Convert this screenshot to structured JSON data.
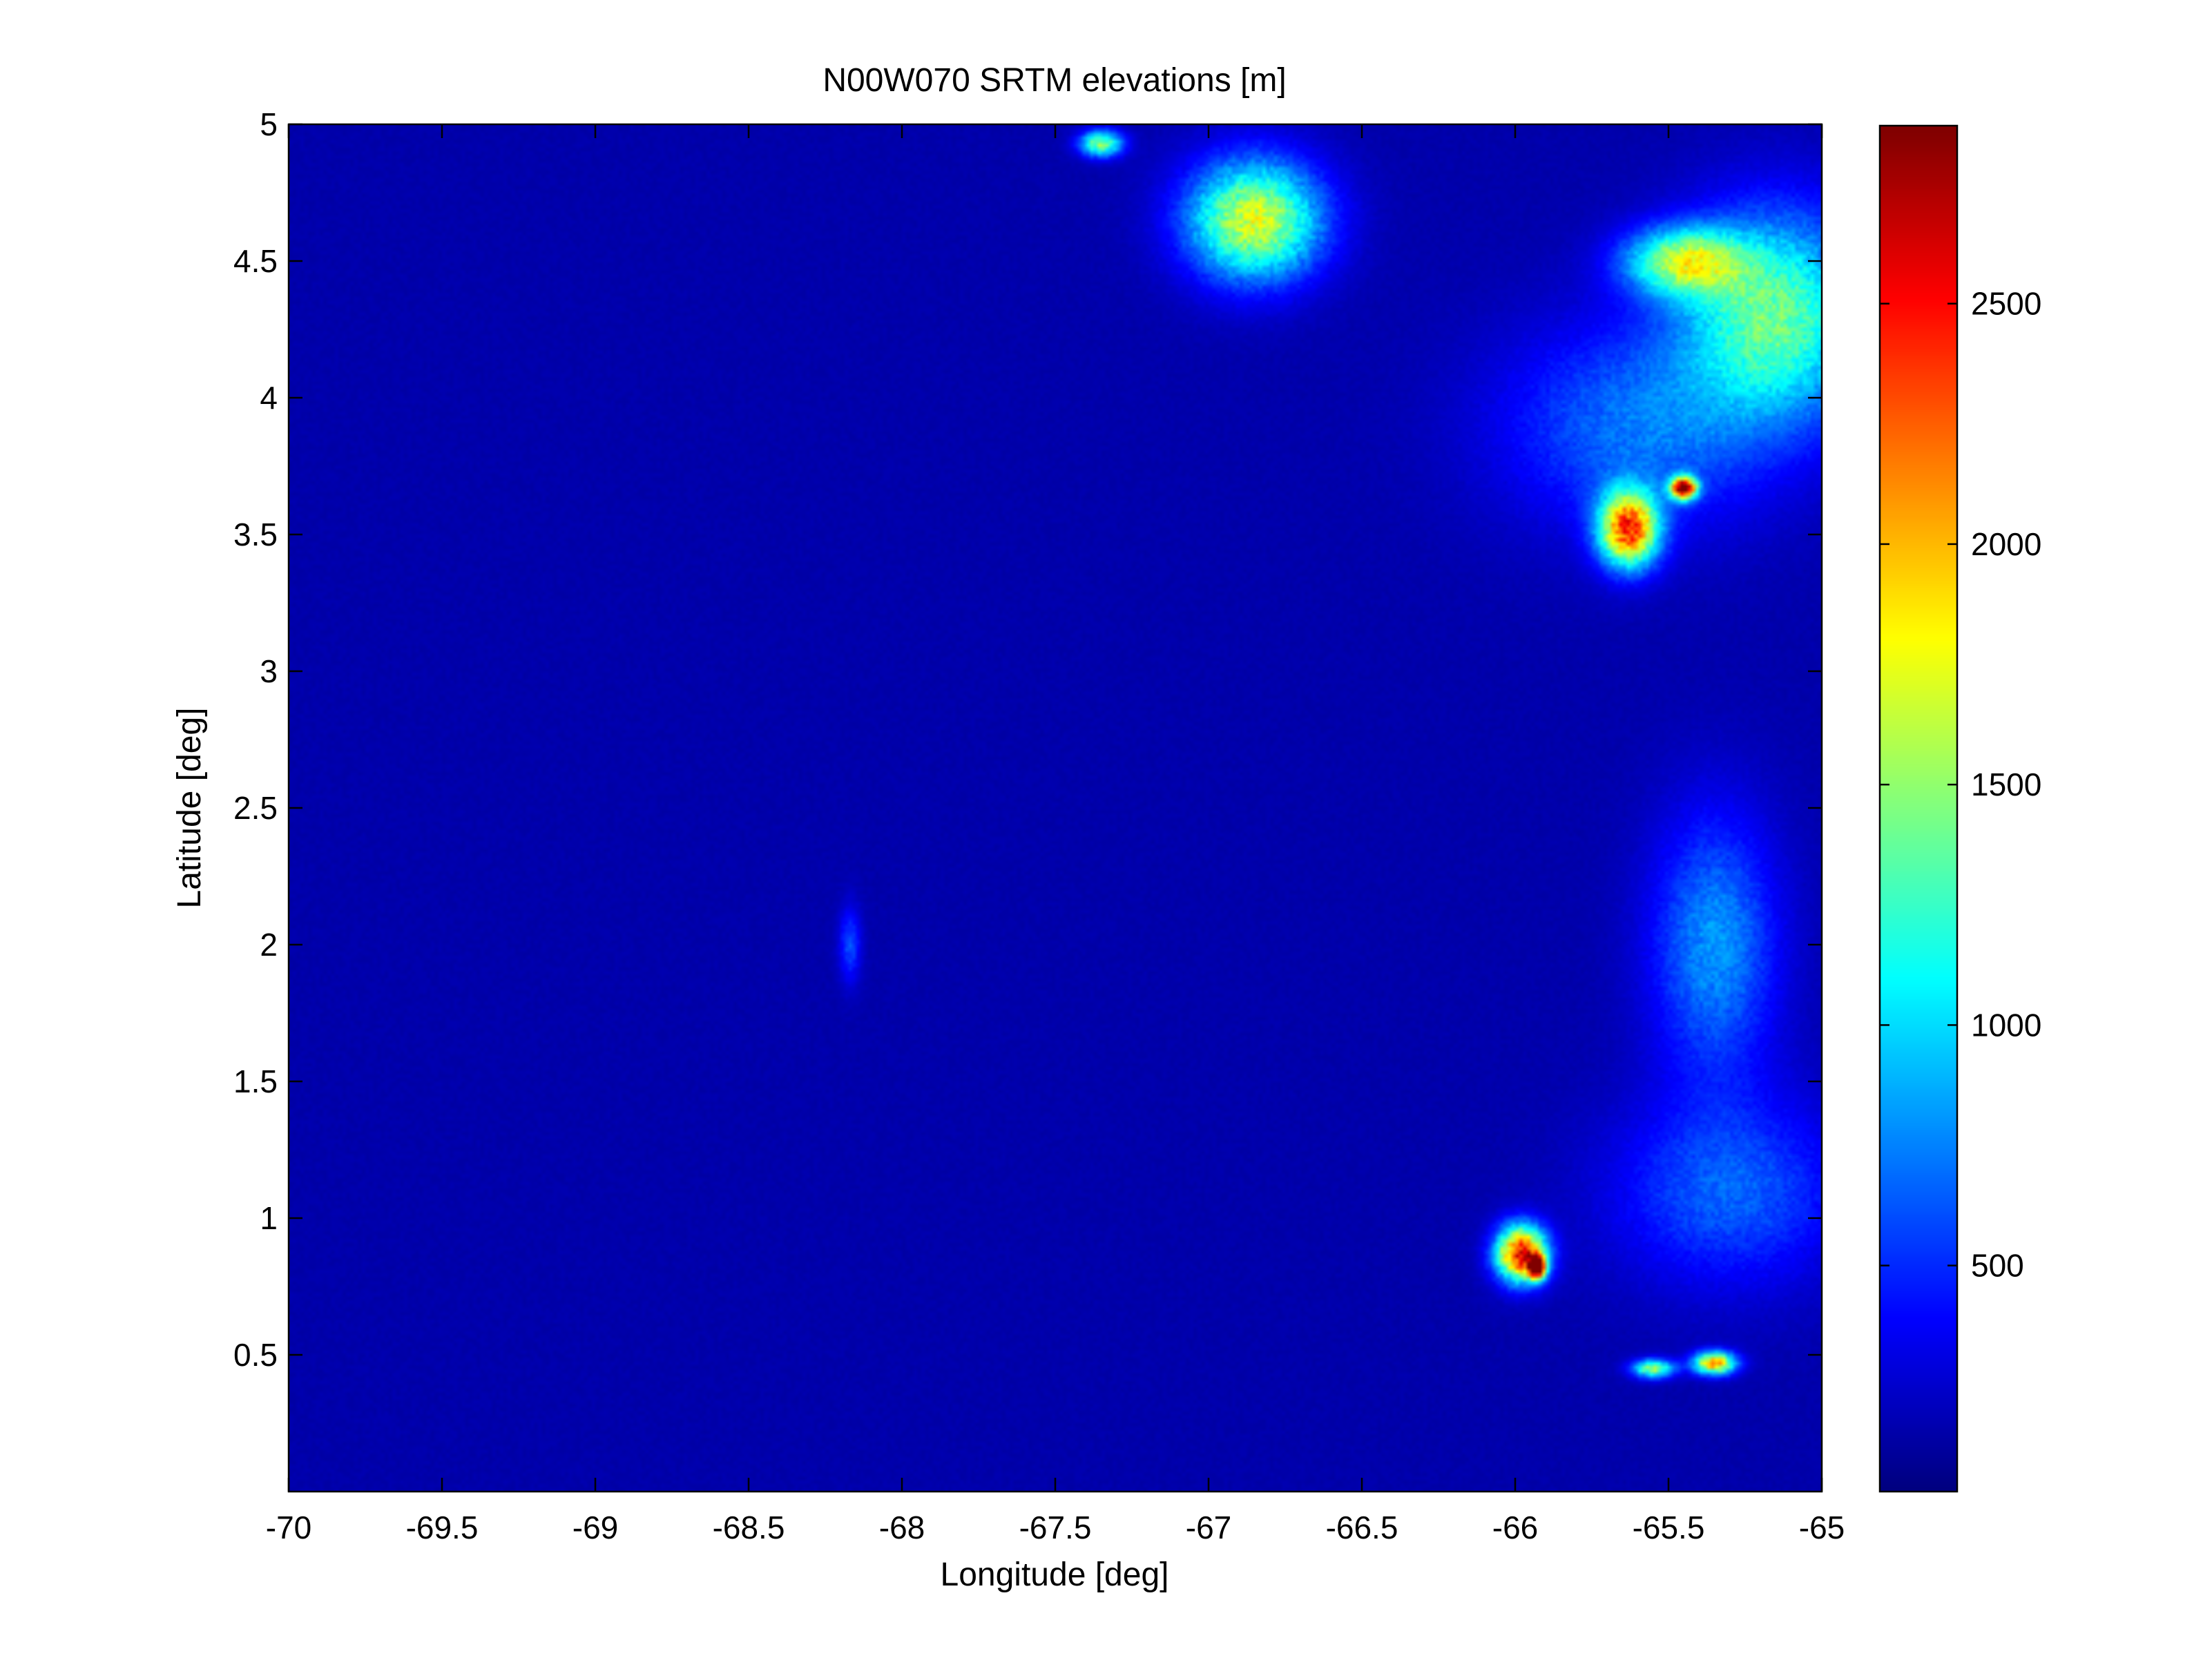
{
  "chart_data": {
    "type": "heatmap",
    "title": "N00W070 SRTM elevations [m]",
    "xlabel": "Longitude [deg]",
    "ylabel": "Latitude [deg]",
    "xlim": [
      -70,
      -65
    ],
    "ylim": [
      0,
      5
    ],
    "xticks": [
      -70,
      -69.5,
      -69,
      -68.5,
      -68,
      -67.5,
      -67,
      -66.5,
      -66,
      -65.5,
      -65
    ],
    "xtick_labels": [
      "-70",
      "-69.5",
      "-69",
      "-68.5",
      "-68",
      "-67.5",
      "-67",
      "-66.5",
      "-66",
      "-65.5",
      "-65"
    ],
    "yticks": [
      0.5,
      1,
      1.5,
      2,
      2.5,
      3,
      3.5,
      4,
      4.5,
      5
    ],
    "ytick_labels": [
      "0.5",
      "1",
      "1.5",
      "2",
      "2.5",
      "3",
      "3.5",
      "4",
      "4.5",
      "5"
    ],
    "colorbar": {
      "colormap": "jet",
      "clim": [
        30,
        2870
      ],
      "ticks": [
        500,
        1000,
        1500,
        2000,
        2500
      ],
      "tick_labels": [
        "500",
        "1000",
        "1500",
        "2000",
        "2500"
      ]
    },
    "background_value": 150,
    "features": [
      {
        "name": "north-central-highland",
        "lon": -66.85,
        "lat": 4.65,
        "peak": 1700,
        "rx": 0.32,
        "ry": 0.32
      },
      {
        "name": "north-central-highland-2",
        "lon": -67.35,
        "lat": 4.93,
        "peak": 1500,
        "rx": 0.1,
        "ry": 0.07
      },
      {
        "name": "northeast-plateau",
        "lon": -65.15,
        "lat": 4.3,
        "peak": 1350,
        "rx": 0.45,
        "ry": 0.55
      },
      {
        "name": "northeast-plateau-2",
        "lon": -65.45,
        "lat": 4.5,
        "peak": 1450,
        "rx": 0.28,
        "ry": 0.18
      },
      {
        "name": "northeast-foothills",
        "lon": -65.6,
        "lat": 3.9,
        "peak": 700,
        "rx": 0.65,
        "ry": 0.55
      },
      {
        "name": "tepui-sierra",
        "lon": -65.63,
        "lat": 3.52,
        "peak": 2300,
        "rx": 0.14,
        "ry": 0.2
      },
      {
        "name": "tepui-peak",
        "lon": -65.45,
        "lat": 3.67,
        "peak": 2800,
        "rx": 0.06,
        "ry": 0.06
      },
      {
        "name": "east-foothills",
        "lon": -65.35,
        "lat": 2.0,
        "peak": 800,
        "rx": 0.3,
        "ry": 0.7
      },
      {
        "name": "southeast-lowland-rise",
        "lon": -65.3,
        "lat": 1.1,
        "peak": 650,
        "rx": 0.55,
        "ry": 0.5
      },
      {
        "name": "southeast-sierra",
        "lon": -65.98,
        "lat": 0.87,
        "peak": 2500,
        "rx": 0.12,
        "ry": 0.15
      },
      {
        "name": "southeast-peak",
        "lon": -65.93,
        "lat": 0.82,
        "peak": 2850,
        "rx": 0.04,
        "ry": 0.06
      },
      {
        "name": "southern-peaks",
        "lon": -65.35,
        "lat": 0.47,
        "peak": 2100,
        "rx": 0.1,
        "ry": 0.06
      },
      {
        "name": "southern-peaks-2",
        "lon": -65.55,
        "lat": 0.45,
        "peak": 1500,
        "rx": 0.1,
        "ry": 0.05
      },
      {
        "name": "central-ridge",
        "lon": -68.17,
        "lat": 2.0,
        "peak": 600,
        "rx": 0.05,
        "ry": 0.2
      }
    ]
  },
  "colors": {
    "background": "#ffffff",
    "axis": "#000000"
  }
}
